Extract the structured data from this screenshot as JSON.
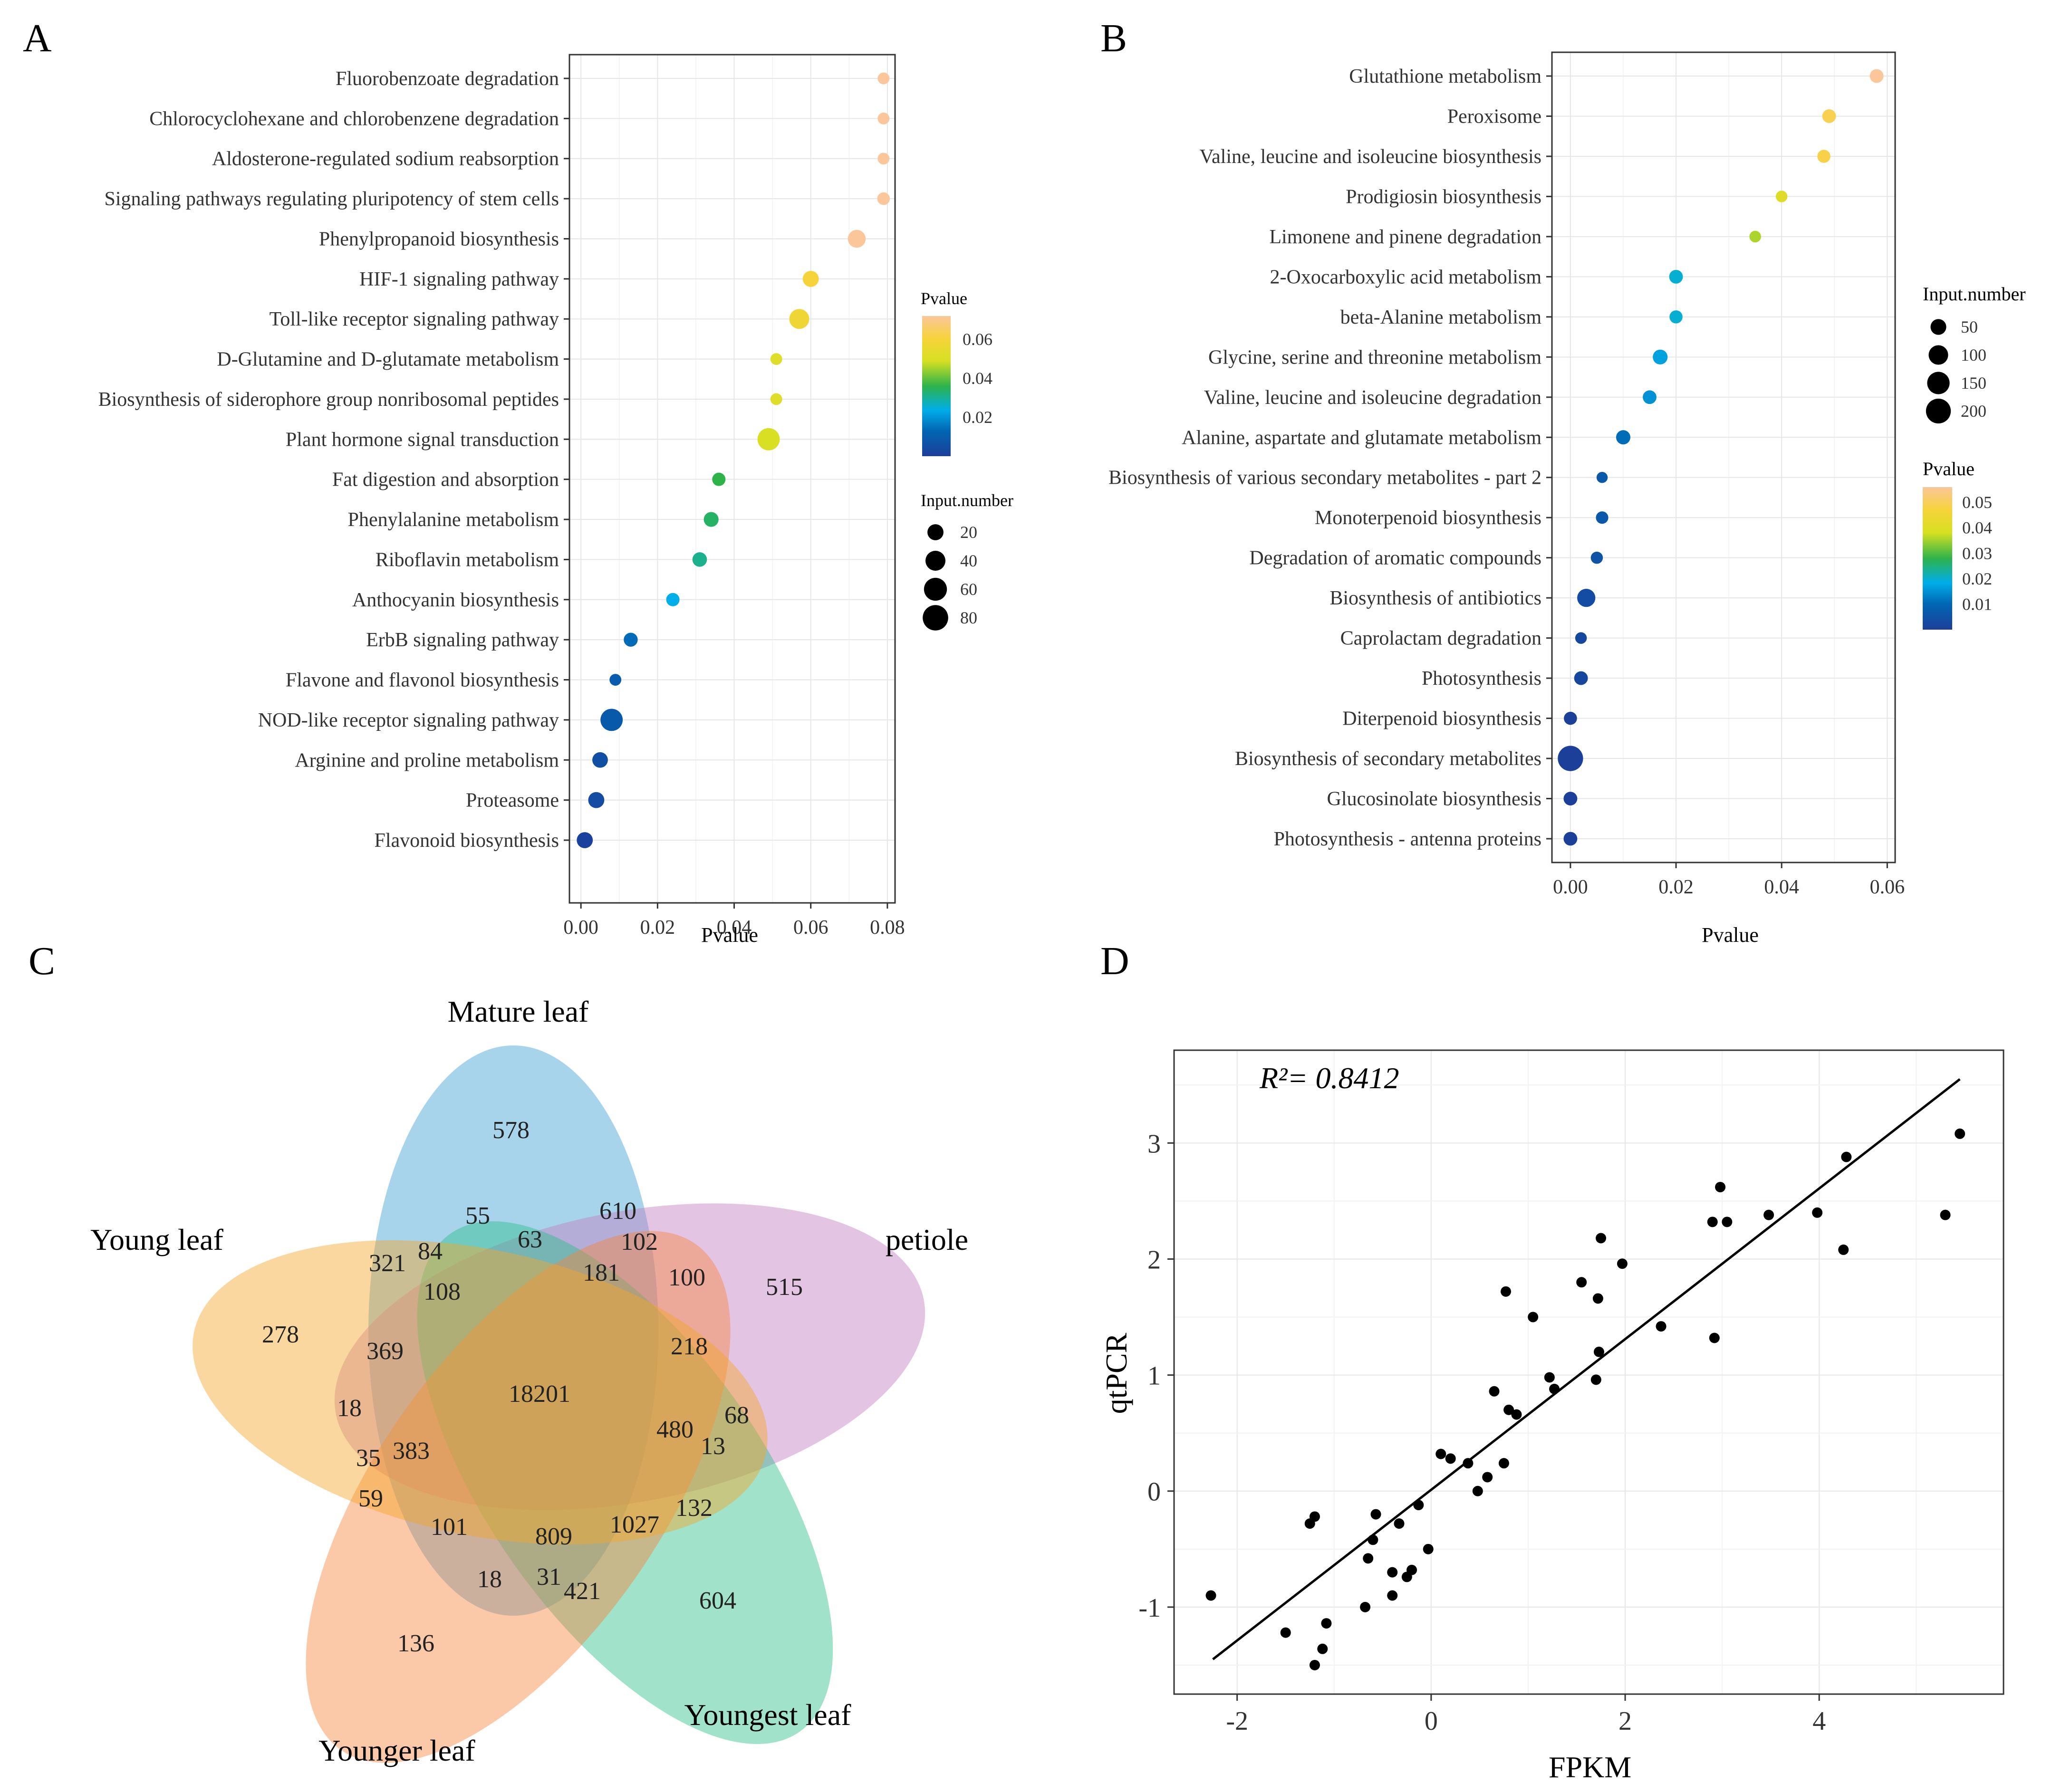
{
  "panel_labels": [
    "A",
    "B",
    "C",
    "D"
  ],
  "colors": {
    "pvalue_scale": [
      "#1c3f9a",
      "#0066b3",
      "#00aee9",
      "#2db34a",
      "#d6e021",
      "#f7d33a",
      "#fbc69a"
    ],
    "grid": "#e6e6e6",
    "venn": [
      "#3e9fd2",
      "#cf86c6",
      "#2fbf8a",
      "#f58b4e",
      "#f4a62a",
      "#e15b6a"
    ]
  },
  "chart_data": [
    {
      "type": "scatter",
      "panel": "A",
      "xlabel": "Pvalue",
      "ylabel": "",
      "xlim": [
        -0.003,
        0.082
      ],
      "xticks": [
        "0.00",
        "0.02",
        "0.04",
        "0.06",
        "0.08"
      ],
      "xtick_values": [
        0,
        0.02,
        0.04,
        0.06,
        0.08
      ],
      "size_scale": [
        10,
        90
      ],
      "color_scale": [
        0,
        0.072
      ],
      "categories": [
        "Fluorobenzoate degradation",
        "Chlorocyclohexane and chlorobenzene degradation",
        "Aldosterone-regulated sodium reabsorption",
        "Signaling pathways regulating pluripotency of stem cells",
        "Phenylpropanoid biosynthesis",
        "HIF-1 signaling pathway",
        "Toll-like receptor signaling pathway",
        "D-Glutamine and D-glutamate metabolism",
        "Biosynthesis of siderophore group nonribosomal peptides",
        "Plant hormone signal transduction",
        "Fat digestion and absorption",
        "Phenylalanine metabolism",
        "Riboflavin metabolism",
        "Anthocyanin biosynthesis",
        "ErbB signaling pathway",
        "Flavone and flavonol biosynthesis",
        "NOD-like receptor signaling pathway",
        "Arginine and proline metabolism",
        "Proteasome",
        "Flavonoid biosynthesis"
      ],
      "pvalues": [
        0.079,
        0.079,
        0.079,
        0.079,
        0.072,
        0.06,
        0.057,
        0.051,
        0.051,
        0.049,
        0.036,
        0.034,
        0.031,
        0.024,
        0.013,
        0.009,
        0.008,
        0.005,
        0.004,
        0.001
      ],
      "input_number": [
        6,
        6,
        6,
        8,
        28,
        20,
        40,
        6,
        6,
        55,
        10,
        15,
        14,
        10,
        12,
        6,
        55,
        18,
        20,
        20
      ],
      "legend_color": {
        "title": "Pvalue",
        "labels": [
          "0.06",
          "0.04",
          "0.02"
        ],
        "values": [
          0.06,
          0.04,
          0.02
        ]
      },
      "legend_size": {
        "title": "Input.number",
        "labels": [
          "20",
          "40",
          "60",
          "80"
        ],
        "values": [
          20,
          40,
          60,
          80
        ]
      }
    },
    {
      "type": "scatter",
      "panel": "B",
      "xlabel": "Pvalue",
      "ylabel": "",
      "xlim": [
        -0.0035,
        0.0615
      ],
      "xticks": [
        "0.00",
        "0.02",
        "0.04",
        "0.06"
      ],
      "xtick_values": [
        0,
        0.02,
        0.04,
        0.06
      ],
      "size_scale": [
        10,
        240
      ],
      "color_scale": [
        0,
        0.056
      ],
      "categories": [
        "Glutathione metabolism",
        "Peroxisome",
        "Valine, leucine and isoleucine biosynthesis",
        "Prodigiosin biosynthesis",
        "Limonene and pinene degradation",
        "2-Oxocarboxylic acid metabolism",
        "beta-Alanine metabolism",
        "Glycine, serine and threonine metabolism",
        "Valine, leucine and isoleucine degradation",
        "Alanine, aspartate and glutamate metabolism",
        "Biosynthesis of various secondary metabolites - part 2",
        "Monoterpenoid biosynthesis",
        "Degradation of aromatic compounds",
        "Biosynthesis of antibiotics",
        "Caprolactam degradation",
        "Photosynthesis",
        "Diterpenoid biosynthesis",
        "Biosynthesis of secondary metabolites",
        "Glucosinolate biosynthesis",
        "Photosynthesis - antenna proteins"
      ],
      "pvalues": [
        0.058,
        0.049,
        0.048,
        0.04,
        0.035,
        0.02,
        0.02,
        0.017,
        0.015,
        0.01,
        0.006,
        0.006,
        0.005,
        0.003,
        0.002,
        0.002,
        0.0,
        0.0,
        0.0,
        0.0
      ],
      "input_number": [
        30,
        30,
        25,
        15,
        15,
        30,
        25,
        40,
        30,
        35,
        12,
        20,
        18,
        80,
        15,
        30,
        25,
        210,
        30,
        30
      ],
      "legend_size": {
        "title": "Input.number",
        "labels": [
          "50",
          "100",
          "150",
          "200"
        ],
        "values": [
          50,
          100,
          150,
          200
        ]
      },
      "legend_color": {
        "title": "Pvalue",
        "labels": [
          "0.05",
          "0.04",
          "0.03",
          "0.02",
          "0.01"
        ],
        "values": [
          0.05,
          0.04,
          0.03,
          0.02,
          0.01
        ]
      }
    },
    {
      "type": "venn",
      "panel": "C",
      "sets": [
        "Mature leaf",
        "petiole",
        "Youngest leaf",
        "Younger leaf",
        "Young leaf"
      ],
      "region_counts": [
        "578",
        "515",
        "604",
        "136",
        "278",
        "55",
        "610",
        "63",
        "102",
        "181",
        "100",
        "84",
        "321",
        "108",
        "369",
        "18",
        "18201",
        "218",
        "68",
        "480",
        "13",
        "132",
        "35",
        "383",
        "59",
        "101",
        "809",
        "1027",
        "18",
        "31",
        "421"
      ]
    },
    {
      "type": "scatter",
      "panel": "D",
      "xlabel": "FPKM",
      "ylabel": "qtPCR",
      "annotation": "R²= 0.8412",
      "xlim": [
        -2.65,
        5.9
      ],
      "ylim": [
        -1.75,
        3.8
      ],
      "xticks": [
        "-2",
        "0",
        "2",
        "4"
      ],
      "xtick_values": [
        -2,
        0,
        2,
        4
      ],
      "yticks": [
        "-1",
        "0",
        "1",
        "2",
        "3"
      ],
      "ytick_values": [
        -1,
        0,
        1,
        2,
        3
      ],
      "trend_line": {
        "x": [
          -2.25,
          5.45
        ],
        "y": [
          -1.45,
          3.55
        ]
      },
      "x": [
        -2.27,
        -1.5,
        -1.25,
        -1.2,
        -1.2,
        -1.12,
        -1.08,
        -0.68,
        -0.65,
        -0.6,
        -0.57,
        -0.4,
        -0.4,
        -0.33,
        -0.25,
        -0.2,
        -0.13,
        -0.03,
        0.1,
        0.2,
        0.38,
        0.48,
        0.58,
        0.65,
        0.75,
        0.77,
        0.8,
        0.88,
        1.05,
        1.22,
        1.27,
        1.55,
        1.7,
        1.72,
        1.73,
        1.75,
        1.97,
        2.37,
        2.9,
        2.92,
        2.98,
        3.05,
        3.48,
        3.98,
        4.25,
        4.28,
        5.3,
        5.45
      ],
      "y": [
        -0.9,
        -1.22,
        -0.28,
        -0.22,
        -1.5,
        -1.36,
        -1.14,
        -1.0,
        -0.58,
        -0.42,
        -0.2,
        -0.7,
        -0.9,
        -0.28,
        -0.74,
        -0.68,
        -0.12,
        -0.5,
        0.32,
        0.28,
        0.24,
        0.0,
        0.12,
        0.86,
        0.24,
        1.72,
        0.7,
        0.66,
        1.5,
        0.98,
        0.88,
        1.8,
        0.96,
        1.66,
        1.2,
        2.18,
        1.96,
        1.42,
        2.32,
        1.32,
        2.62,
        2.32,
        2.38,
        2.4,
        2.08,
        2.88,
        2.38,
        3.08
      ]
    }
  ],
  "venn_labels": {
    "mature": "Mature leaf",
    "petiole": "petiole",
    "youngest": "Youngest leaf",
    "younger": "Younger leaf",
    "young": "Young leaf"
  }
}
